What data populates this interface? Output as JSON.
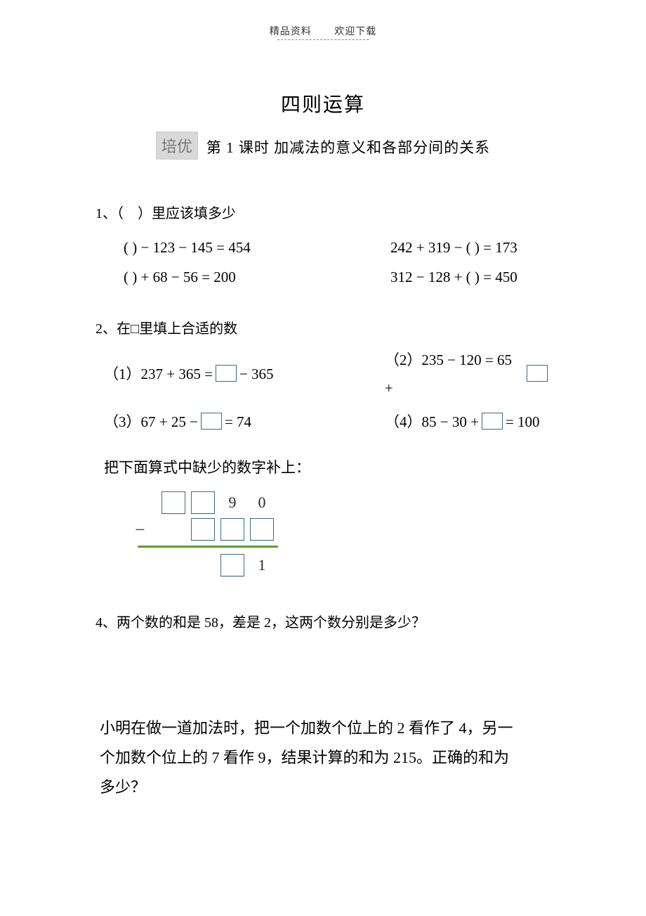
{
  "header": {
    "left": "精品资料",
    "right": "欢迎下载"
  },
  "title": "四则运算",
  "badge": "培优",
  "subtitle": "第 1 课时  加减法的意义和各部分间的关系",
  "q1": {
    "prompt": "1、（　）里应该填多少",
    "eq1": "(            ) − 123 − 145 = 454",
    "eq2": "242 + 319 − (            ) = 173",
    "eq3": "(            ) + 68 − 56 = 200",
    "eq4": "312 − 128 + (            ) = 450"
  },
  "q2": {
    "prompt": "2、在□里填上合适的数",
    "p1_pre": "（1）237 + 365 =",
    "p1_post": "− 365",
    "p2_pre": "（2）235 − 120 = 65 +",
    "p3_pre": "（3）67 + 25 −",
    "p3_post": "= 74",
    "p4_pre": "（4）85 − 30 +",
    "p4_post": "= 100"
  },
  "q3": {
    "prompt": "把下面算式中缺少的数字补上：",
    "row1_d3": "9",
    "row1_d4": "0",
    "row3_d4": "1"
  },
  "q4": "4、两个数的和是  58，差是 2，这两个数分别是多少？",
  "q5": {
    "l1": "小明在做一道加法时，把一个加数个位上的 2 看作了 4，另一",
    "l2": "个加数个位上的 7 看作 9，结果计算的和为 215。正确的和为",
    "l3": "多少？"
  },
  "colors": {
    "box_border": "#3a6a8c",
    "rule_green": "#5a9a33",
    "badge_bg": "#d9d9d9"
  }
}
